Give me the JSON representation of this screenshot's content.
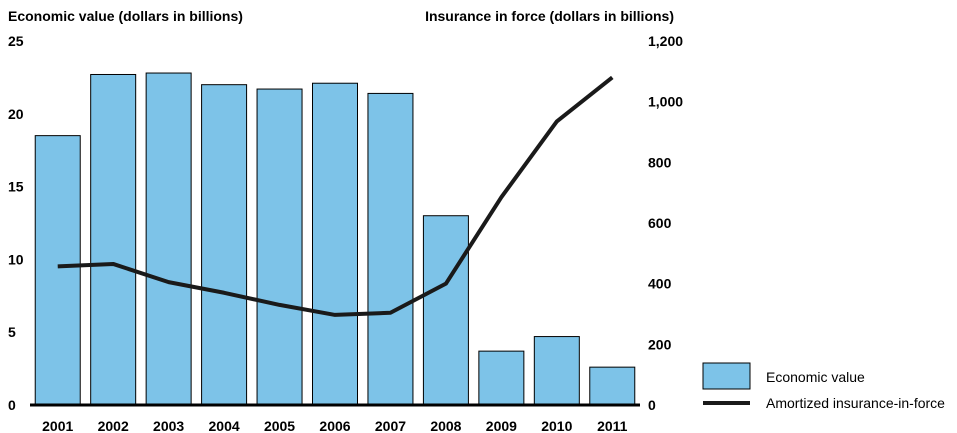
{
  "chart_data": {
    "type": "bar",
    "categories": [
      "2001",
      "2002",
      "2003",
      "2004",
      "2005",
      "2006",
      "2007",
      "2008",
      "2009",
      "2010",
      "2011"
    ],
    "series": [
      {
        "name": "Economic value",
        "type": "bar",
        "axis": "left",
        "values": [
          18.5,
          22.7,
          22.8,
          22.0,
          21.7,
          22.1,
          21.4,
          13.0,
          3.7,
          4.7,
          2.6
        ]
      },
      {
        "name": "Amortized insurance-in-force",
        "type": "line",
        "axis": "right",
        "values": [
          457,
          465,
          405,
          370,
          330,
          297,
          304,
          400,
          685,
          935,
          1080
        ]
      }
    ],
    "ylabel_left": "Economic value (dollars in billions)",
    "ylabel_right": "Insurance in force (dollars in billions)",
    "ylim_left": [
      0,
      25
    ],
    "ylim_right": [
      0,
      1200
    ],
    "yticks_left": [
      "0",
      "5",
      "10",
      "15",
      "20",
      "25"
    ],
    "yticks_right": [
      "0",
      "200",
      "400",
      "600",
      "800",
      "1,000",
      "1,200"
    ],
    "grid": false,
    "legend_position": "bottom-right",
    "colors": {
      "bar": "#7dc3e8",
      "bar_stroke": "#000000",
      "line": "#1a1a1a"
    }
  }
}
